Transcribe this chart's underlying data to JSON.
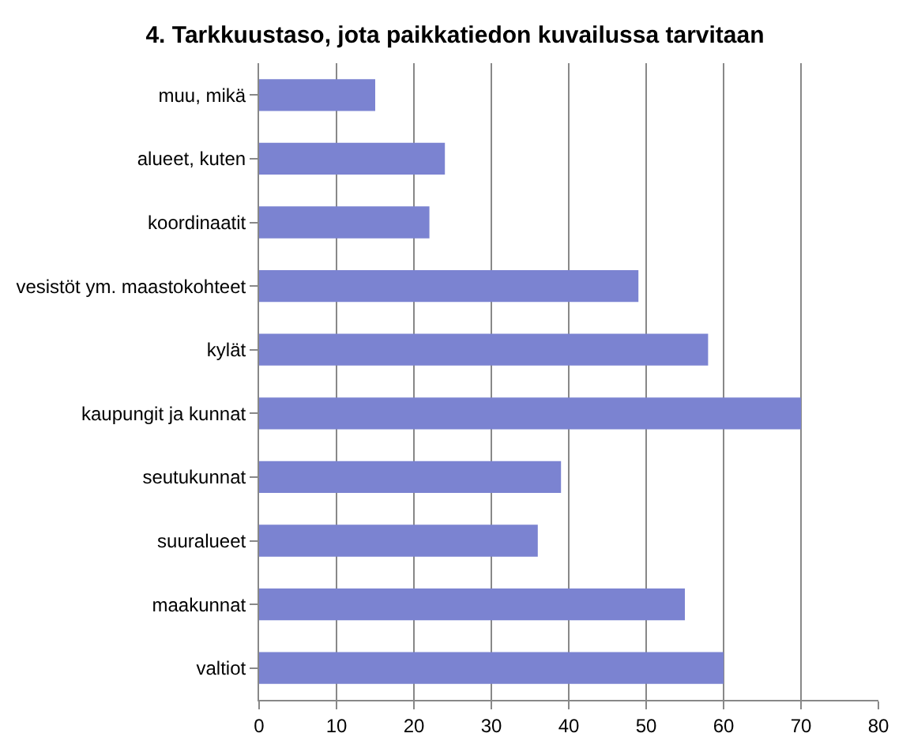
{
  "chart_data": {
    "type": "bar",
    "orientation": "horizontal",
    "title": "4. Tarkkuustaso, jota paikkatiedon kuvailussa tarvitaan",
    "categories": [
      "muu, mikä",
      "alueet, kuten",
      "koordinaatit",
      "vesistöt ym. maastokohteet",
      "kylät",
      "kaupungit ja kunnat",
      "seutukunnat",
      "suuralueet",
      "maakunnat",
      "valtiot"
    ],
    "values": [
      15,
      24,
      22,
      49,
      58,
      70,
      39,
      36,
      55,
      60
    ],
    "color": "#7b83d1",
    "xlim": [
      0,
      80
    ],
    "xticks": [
      0,
      10,
      20,
      30,
      40,
      50,
      60,
      70,
      80
    ],
    "grid": "x",
    "legend": false
  }
}
